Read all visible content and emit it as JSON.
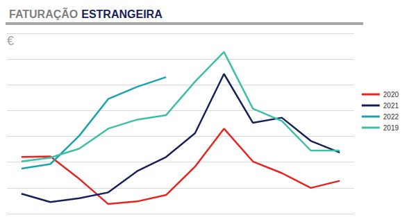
{
  "chart_data": {
    "type": "line",
    "title": "FATURAÇÃO ESTRANGEIRA",
    "y_label": "€",
    "categories": [
      null,
      null,
      null,
      null,
      null,
      null,
      null,
      null,
      null,
      null,
      null,
      null
    ],
    "series": [
      {
        "name": "2020",
        "color": "#e8231f",
        "values": [
          2.2,
          2.22,
          1.35,
          0.375,
          0.475,
          0.725,
          1.825,
          3.3,
          2.025,
          1.575,
          1.0,
          1.275
        ]
      },
      {
        "name": "2021",
        "color": "#16215a",
        "values": [
          0.775,
          0.45,
          0.6,
          0.825,
          1.65,
          2.2,
          3.125,
          5.425,
          3.525,
          3.725,
          2.825,
          2.375
        ]
      },
      {
        "name": "2022",
        "color": "#1aa3ad",
        "values": [
          1.75,
          1.925,
          3.025,
          4.45,
          4.925,
          5.3,
          null,
          null,
          null,
          null,
          null,
          null
        ]
      },
      {
        "name": "2019",
        "color": "#3dbfa6",
        "values": [
          2.025,
          2.175,
          2.525,
          3.3,
          3.65,
          3.825,
          5.125,
          6.275,
          4.075,
          3.6,
          2.45,
          2.45
        ]
      }
    ],
    "ylim": [
      0,
      7
    ],
    "yticks": [
      0,
      1,
      2,
      3,
      4,
      5,
      6,
      7
    ],
    "grid": true,
    "legend": "right",
    "tick_labels": false
  }
}
